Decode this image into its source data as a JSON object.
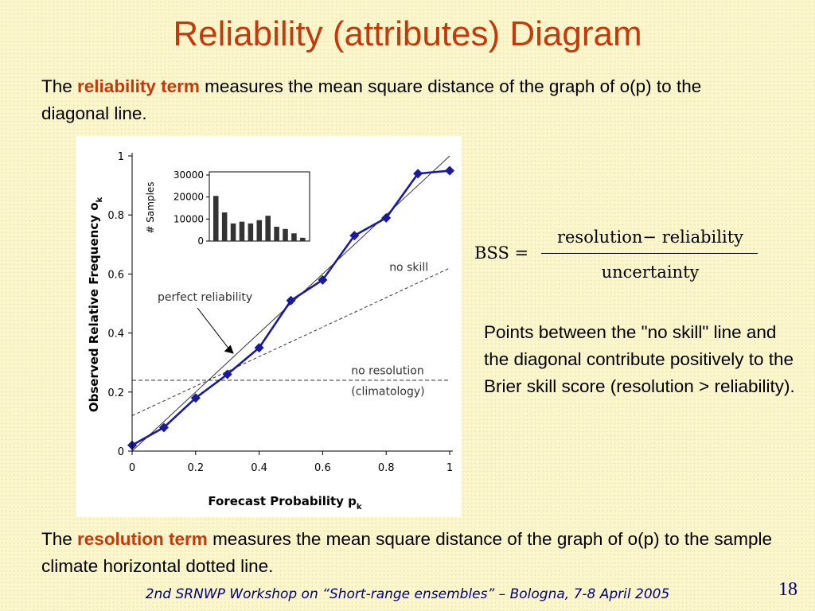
{
  "slide": {
    "title": "Reliability (attributes) Diagram",
    "top_text": {
      "pre": "The ",
      "bold": "reliability term",
      "post": " measures the mean square distance of the graph of o(p) to the diagonal line."
    },
    "bottom_text": {
      "pre": "The ",
      "bold": "resolution term",
      "post": " measures the mean square distance of the graph of o(p) to the sample climate horizontal dotted line."
    },
    "formula": {
      "lhs": "BSS =",
      "numerator": "resolution− reliability",
      "denominator": "uncertainty"
    },
    "note": "Points between the \"no skill\" line and the diagonal contribute positively to the Brier skill score (resolution > reliability).",
    "footer": "2nd SRNWP Workshop on “Short-range ensembles” – Bologna, 7-8 April 2005",
    "page_number": "18",
    "colors": {
      "title": "#c23a0c",
      "highlight": "#c23a0c",
      "footer": "#000080",
      "series": "#1a1a9a"
    }
  },
  "chart_data": [
    {
      "type": "line",
      "xlabel": "Forecast Probability p",
      "xlabel_sub": "k",
      "ylabel": "Observed Relative Frequency  o",
      "ylabel_sub": "k",
      "xlim": [
        0,
        1
      ],
      "ylim": [
        0,
        1
      ],
      "xticks": [
        "0",
        "0.2",
        "0.4",
        "0.6",
        "0.8",
        "1"
      ],
      "yticks": [
        "0",
        "0.2",
        "0.4",
        "0.6",
        "0.8",
        "1"
      ],
      "series": [
        {
          "x": [
            0,
            0.1,
            0.2,
            0.3,
            0.4,
            0.5,
            0.6,
            0.7,
            0.8,
            0.9,
            1.0
          ],
          "y": [
            0.02,
            0.08,
            0.18,
            0.26,
            0.35,
            0.51,
            0.58,
            0.73,
            0.79,
            0.94,
            0.95
          ]
        }
      ],
      "reference_lines": [
        {
          "kind": "diagonal",
          "from": [
            0,
            0
          ],
          "to": [
            1,
            1
          ]
        },
        {
          "kind": "no-skill",
          "label": "no skill",
          "from": [
            0,
            0.12
          ],
          "to": [
            1,
            0.62
          ]
        },
        {
          "kind": "no-resolution",
          "label": "no resolution",
          "label2": "(climatology)",
          "y": 0.24
        }
      ],
      "annotations": [
        {
          "text": "perfect reliability",
          "arrow_to": [
            0.32,
            0.33
          ]
        }
      ]
    },
    {
      "type": "bar",
      "role": "inset histogram",
      "ylabel": "# Samples",
      "yticks": [
        "0",
        "10000",
        "20000",
        "30000"
      ],
      "ylim": [
        0,
        30000
      ],
      "values": [
        20500,
        13000,
        8000,
        8800,
        8000,
        9500,
        11500,
        6500,
        5500,
        3500,
        1500
      ]
    }
  ]
}
